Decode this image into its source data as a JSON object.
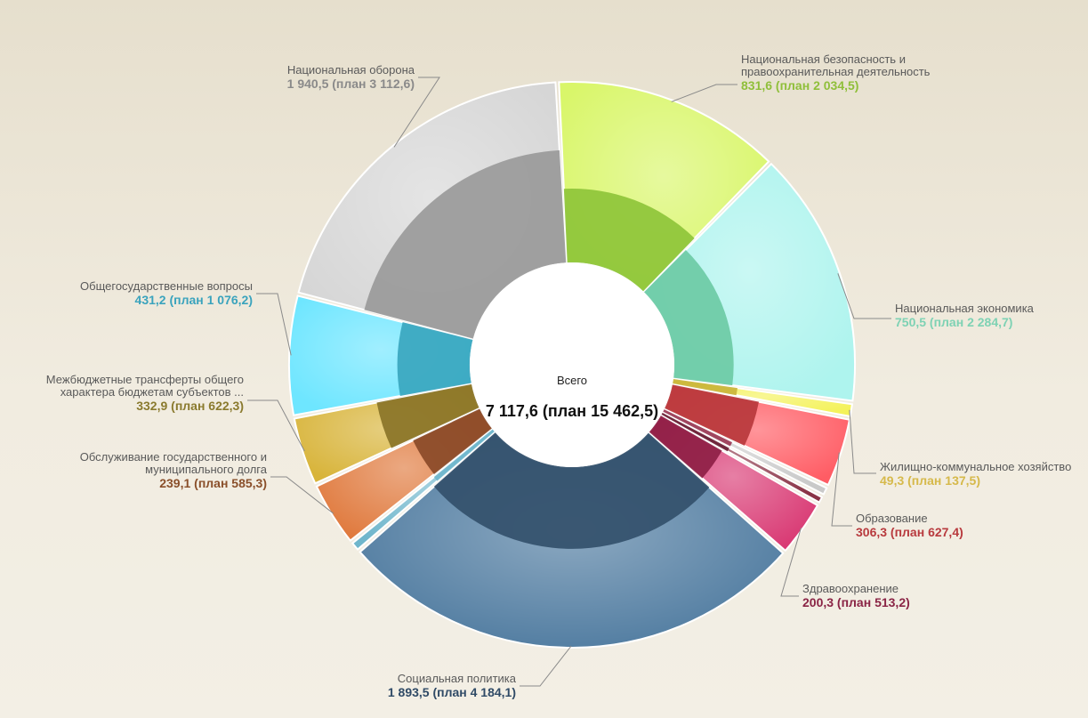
{
  "chart_data": {
    "type": "sunburst-pie",
    "total": {
      "label": "Всего",
      "value": "7 117,6 (план 15 462,5)",
      "fact": 7117.6,
      "plan": 15462.5
    },
    "segments": [
      {
        "name": "Национальная безопасность и правоохранительная деятельность",
        "name_lines": [
          "Национальная безопасность и",
          "правоохранительная деятельность"
        ],
        "fact": 831.6,
        "plan": 2034.5,
        "value_text": "831,6 (план 2 034,5)",
        "outer_color": "#d9f66a",
        "inner_color": "#8ec43a",
        "value_color": "#8fbf3a"
      },
      {
        "name": "Национальная экономика",
        "name_lines": [
          "Национальная экономика"
        ],
        "fact": 750.5,
        "plan": 2284.7,
        "value_text": "750,5 (план 2 284,7)",
        "outer_color": "#aef4ee",
        "inner_color": "#6ccaa5",
        "value_color": "#7ed2b4"
      },
      {
        "name": "Жилищно-коммунальное хозяйство",
        "name_lines": [
          "Жилищно-коммунальное хозяйство"
        ],
        "fact": 49.3,
        "plan": 137.5,
        "value_text": "49,3 (план 137,5)",
        "outer_color": "#f4f25a",
        "inner_color": "#c9b43a",
        "value_color": "#d6b94a"
      },
      {
        "name": "Образование",
        "name_lines": [
          "Образование"
        ],
        "fact": 306.3,
        "plan": 627.4,
        "value_text": "306,3 (план 627,4)",
        "outer_color": "#ff5c64",
        "inner_color": "#b8383c",
        "value_color": "#b83a3e"
      },
      {
        "name": "Здравоохранение",
        "name_lines": [
          "Здравоохранение"
        ],
        "fact": 200.3,
        "plan": 513.2,
        "value_text": "200,3 (план 513,2)",
        "outer_color": "#d93a74",
        "inner_color": "#8e1f45",
        "value_color": "#8a2445"
      },
      {
        "name": "Социальная политика",
        "name_lines": [
          "Социальная политика"
        ],
        "fact": 1893.5,
        "plan": 4184.1,
        "value_text": "1 893,5 (план 4 184,1)",
        "outer_color": "#4f7ba0",
        "inner_color": "#33506b",
        "value_color": "#2f4a66"
      },
      {
        "name": "Обслуживание государственного и муниципального долга",
        "name_lines": [
          "Обслуживание государственного и",
          "муниципального долга"
        ],
        "fact": 239.1,
        "plan": 585.3,
        "value_text": "239,1 (план 585,3)",
        "outer_color": "#e07a3e",
        "inner_color": "#8a4a28",
        "value_color": "#8a4f2a"
      },
      {
        "name": "Межбюджетные трансферты общего характера бюджетам субъектов ...",
        "name_lines": [
          "Межбюджетные трансферты общего",
          "характера бюджетам субъектов ..."
        ],
        "fact": 332.9,
        "plan": 622.3,
        "value_text": "332,9 (план 622,3)",
        "outer_color": "#d8b43a",
        "inner_color": "#8a7428",
        "value_color": "#8a7a2e"
      },
      {
        "name": "Общегосударственные вопросы",
        "name_lines": [
          "Общегосударственные вопросы"
        ],
        "fact": 431.2,
        "plan": 1076.2,
        "value_text": "431,2 (план 1 076,2)",
        "outer_color": "#6ee6ff",
        "inner_color": "#3aa6bf",
        "value_color": "#3aa3bd"
      },
      {
        "name": "Национальная оборона",
        "name_lines": [
          "Национальная оборона"
        ],
        "fact": 1940.5,
        "plan": 3112.6,
        "value_text": "1 940,5 (план 3 112,6)",
        "outer_color": "#d6d6d6",
        "inner_color": "#9a9a9a",
        "value_color": "#8a8a8a"
      }
    ],
    "minor_segments": [
      {
        "plan": 90,
        "outer_color": "#c9c9c9",
        "inner_color": "#9a3a55"
      },
      {
        "plan": 80,
        "outer_color": "#8a3346",
        "inner_color": "#6a2035"
      },
      {
        "plan": 100,
        "outer_color": "#6fb6cc",
        "inner_color": "#6fb6cc"
      }
    ]
  }
}
